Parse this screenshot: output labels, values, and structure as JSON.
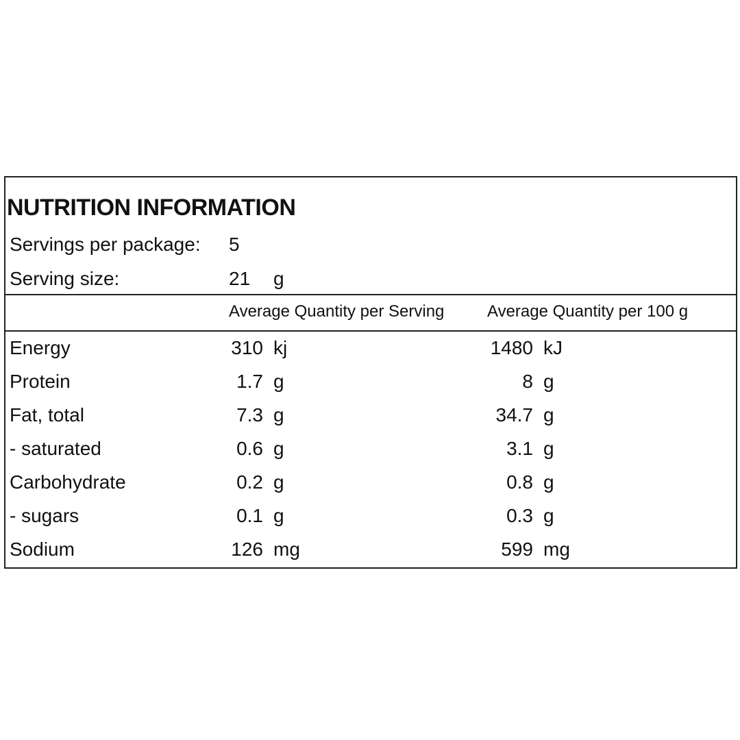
{
  "title": "NUTRITION INFORMATION",
  "servings_per_package": {
    "label": "Servings per package:",
    "value": 5
  },
  "serving_size": {
    "label": "Serving size:",
    "value": 21,
    "unit": "g"
  },
  "table": {
    "columns": [
      "Average Quantity per Serving",
      "Average Quantity per 100 g"
    ],
    "rows": [
      {
        "label": "Energy",
        "per_serving": 310,
        "per_serving_unit": "kj",
        "per_100g": 1480,
        "per_100g_unit": "kJ"
      },
      {
        "label": "Protein",
        "per_serving": 1.7,
        "per_serving_unit": "g",
        "per_100g": 8,
        "per_100g_unit": "g"
      },
      {
        "label": "Fat, total",
        "per_serving": 7.3,
        "per_serving_unit": "g",
        "per_100g": 34.7,
        "per_100g_unit": "g"
      },
      {
        "label": "- saturated",
        "per_serving": 0.6,
        "per_serving_unit": "g",
        "per_100g": 3.1,
        "per_100g_unit": "g"
      },
      {
        "label": "Carbohydrate",
        "per_serving": 0.2,
        "per_serving_unit": "g",
        "per_100g": 0.8,
        "per_100g_unit": "g"
      },
      {
        "label": "- sugars",
        "per_serving": 0.1,
        "per_serving_unit": "g",
        "per_100g": 0.3,
        "per_100g_unit": "g"
      },
      {
        "label": "Sodium",
        "per_serving": 126,
        "per_serving_unit": "mg",
        "per_100g": 599,
        "per_100g_unit": "mg"
      }
    ]
  }
}
